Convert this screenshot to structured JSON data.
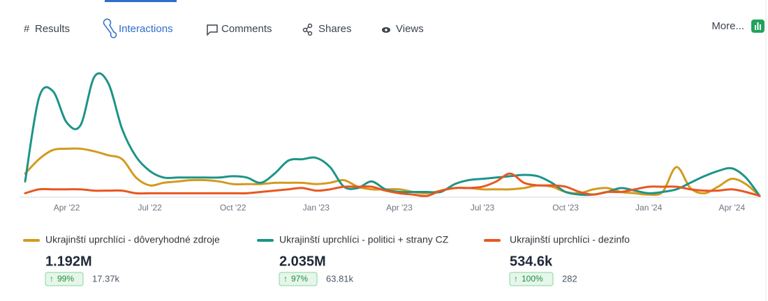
{
  "tabs": [
    "Results",
    "Interactions",
    "Comments",
    "Shares",
    "Views"
  ],
  "active_tab": 1,
  "more": "More...",
  "chart_data": {
    "type": "line",
    "categories": [
      null,
      null,
      null,
      "Apr '22",
      null,
      null,
      null,
      null,
      null,
      "Jul '22",
      null,
      null,
      null,
      null,
      null,
      "Oct '22",
      null,
      null,
      null,
      null,
      null,
      "Jan '23",
      null,
      null,
      null,
      null,
      null,
      "Apr '23",
      null,
      null,
      null,
      null,
      null,
      "Jul '23",
      null,
      null,
      null,
      null,
      null,
      "Oct '23",
      null,
      null,
      null,
      null,
      null,
      "Jan '24",
      null,
      null,
      null,
      null,
      null,
      "Apr '24",
      null,
      null
    ],
    "ylim": [
      0,
      100
    ],
    "grid": false,
    "series": [
      {
        "name": "Ukrajinští uprchlíci - dôveryhodné zdroje",
        "color": "#d39a1e",
        "values": [
          18,
          29,
          36,
          37,
          37,
          35,
          32,
          29,
          15,
          9,
          11,
          12,
          13,
          13,
          12,
          10,
          10,
          10,
          11,
          11,
          11,
          10,
          11,
          13,
          8,
          6,
          6,
          6,
          4,
          3,
          5,
          7,
          7,
          6,
          6,
          6,
          7,
          9,
          8,
          4,
          3,
          6,
          7,
          4,
          3,
          2,
          4,
          23,
          7,
          3,
          8,
          14,
          10,
          1
        ]
      },
      {
        "name": "Ukrajinští uprchlíci - politici + strany CZ",
        "color": "#1d9488",
        "values": [
          12,
          76,
          81,
          57,
          55,
          92,
          87,
          52,
          31,
          20,
          15,
          15,
          15,
          15,
          15,
          16,
          15,
          11,
          18,
          28,
          29,
          30,
          23,
          8,
          7,
          12,
          6,
          4,
          4,
          4,
          4,
          10,
          13,
          14,
          15,
          16,
          17,
          16,
          11,
          4,
          2,
          2,
          4,
          7,
          5,
          3,
          4,
          6,
          11,
          16,
          20,
          22,
          15,
          1
        ]
      },
      {
        "name": "Ukrajinští uprchlíci - dezinfo",
        "color": "#e8571f",
        "values": [
          3,
          6,
          6,
          6,
          6,
          5,
          5,
          5,
          3,
          3,
          3,
          3,
          3,
          3,
          3,
          3,
          3,
          4,
          5,
          6,
          7,
          5,
          6,
          8,
          8,
          8,
          5,
          3,
          2,
          1,
          5,
          7,
          7,
          8,
          12,
          18,
          11,
          9,
          9,
          8,
          4,
          2,
          4,
          4,
          6,
          8,
          8,
          8,
          6,
          5,
          5,
          6,
          4,
          1
        ]
      }
    ]
  },
  "legend_stats": [
    {
      "total": "1.192M",
      "change": "99%",
      "count": "17.37k"
    },
    {
      "total": "2.035M",
      "change": "97%",
      "count": "63.81k"
    },
    {
      "total": "534.6k",
      "change": "100%",
      "count": "282"
    }
  ]
}
